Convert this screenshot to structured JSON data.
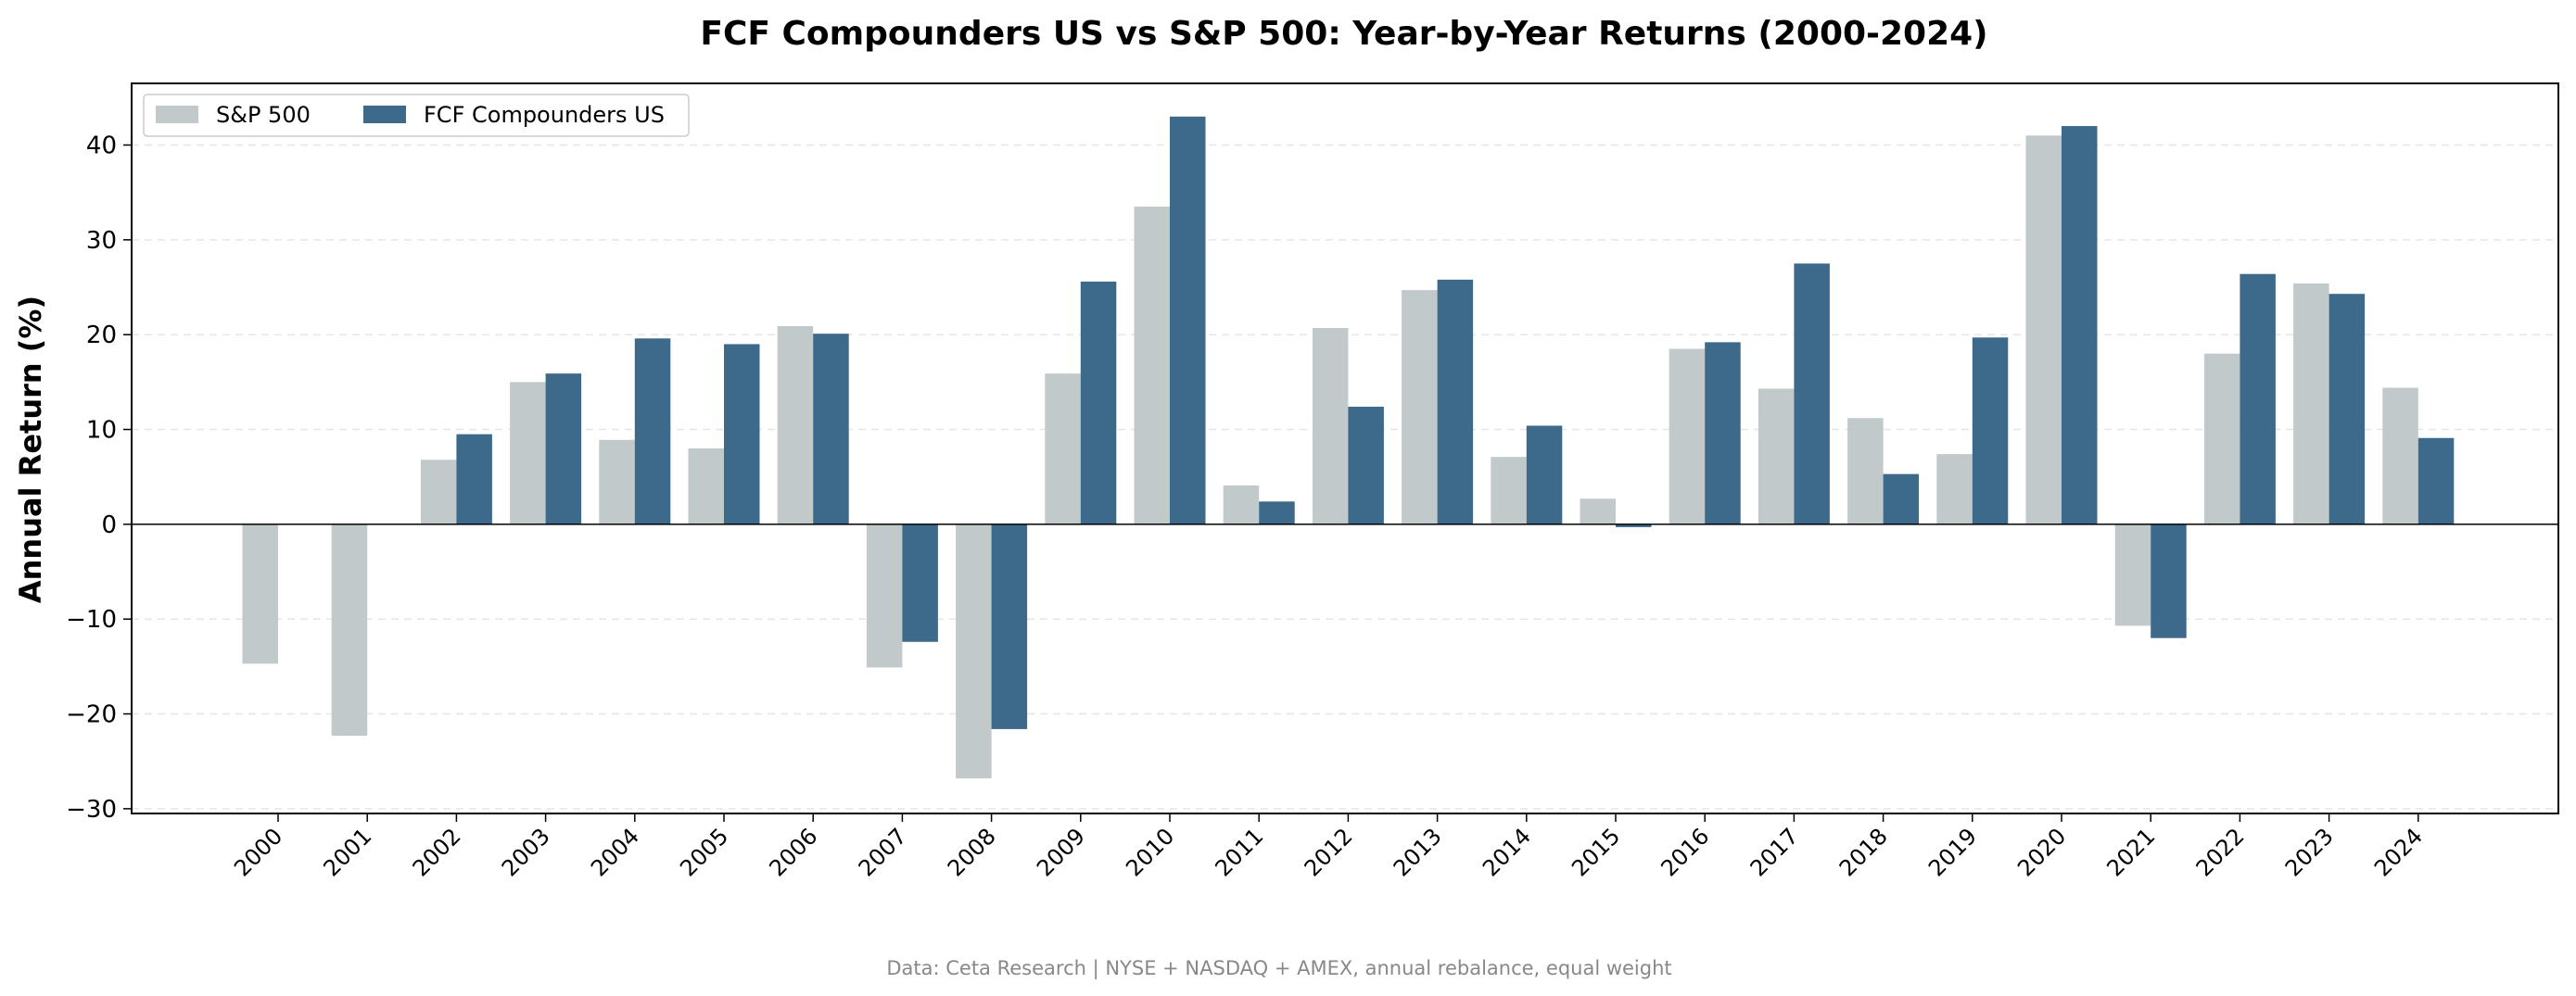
{
  "chart_data": {
    "type": "bar",
    "title": "FCF Compounders US vs S&P 500: Year-by-Year Returns (2000-2024)",
    "xlabel": "",
    "ylabel": "Annual Return (%)",
    "ylim": [
      -30.5,
      46.5
    ],
    "yticks": [
      -30,
      -20,
      -10,
      0,
      10,
      20,
      30,
      40
    ],
    "grid": true,
    "legend_position": "top-left",
    "categories": [
      "2000",
      "2001",
      "2002",
      "2003",
      "2004",
      "2005",
      "2006",
      "2007",
      "2008",
      "2009",
      "2010",
      "2011",
      "2012",
      "2013",
      "2014",
      "2015",
      "2016",
      "2017",
      "2018",
      "2019",
      "2020",
      "2021",
      "2022",
      "2023",
      "2024"
    ],
    "series": [
      {
        "name": "S&P 500",
        "color": "#c1c9ca",
        "values": [
          -14.7,
          -22.3,
          6.8,
          15.0,
          8.9,
          8.0,
          20.9,
          -15.1,
          -26.8,
          15.9,
          33.5,
          4.1,
          20.7,
          24.7,
          7.1,
          2.7,
          18.5,
          14.3,
          11.2,
          7.4,
          41.0,
          -10.7,
          18.0,
          25.4,
          14.4
        ]
      },
      {
        "name": "FCF Compounders US",
        "color": "#3d6a8a",
        "values": [
          null,
          null,
          9.5,
          15.9,
          19.6,
          19.0,
          20.1,
          -12.4,
          -21.6,
          25.6,
          43.0,
          2.4,
          12.4,
          25.8,
          10.4,
          -0.3,
          19.2,
          27.5,
          5.3,
          19.7,
          42.0,
          -12.0,
          26.4,
          24.3,
          9.1
        ]
      }
    ],
    "footnote": "Data: Ceta Research | NYSE + NASDAQ + AMEX, annual rebalance, equal weight"
  }
}
